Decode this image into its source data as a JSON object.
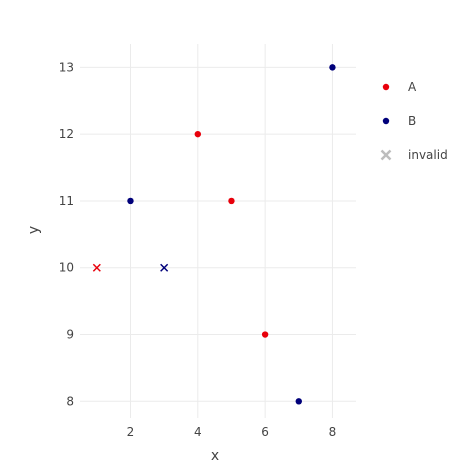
{
  "chart_data": {
    "type": "scatter",
    "title": "",
    "xlabel": "x",
    "ylabel": "y",
    "xlim": [
      0.5,
      8.7
    ],
    "ylim": [
      7.75,
      13.35
    ],
    "xticks": [
      2,
      4,
      6,
      8
    ],
    "yticks": [
      8,
      9,
      10,
      11,
      12,
      13
    ],
    "grid": true,
    "legend_position": "right",
    "series": [
      {
        "name": "A",
        "color": "#e8000b",
        "marker": "circle",
        "points": [
          {
            "x": 4,
            "y": 12
          },
          {
            "x": 5,
            "y": 11
          },
          {
            "x": 6,
            "y": 9
          }
        ]
      },
      {
        "name": "B",
        "color": "#00007a",
        "marker": "circle",
        "points": [
          {
            "x": 8,
            "y": 13
          },
          {
            "x": 2,
            "y": 11
          },
          {
            "x": 7,
            "y": 8
          }
        ]
      },
      {
        "name": "invalid",
        "color": "#bdbdbd",
        "marker": "x",
        "points": [
          {
            "x": 1,
            "y": 10,
            "color": "#e8000b"
          },
          {
            "x": 3,
            "y": 10,
            "color": "#00007a"
          }
        ]
      }
    ]
  }
}
